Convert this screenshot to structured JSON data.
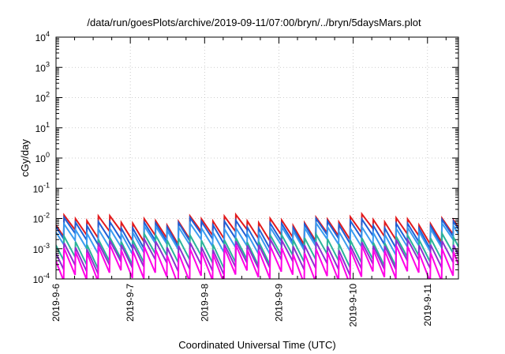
{
  "chart_data": {
    "type": "line",
    "title": "/data/run/goesPlots/archive/2019-09-11/07:00/bryn/../bryn/5daysMars.plot",
    "xlabel": "Coordinated Universal Time (UTC)",
    "ylabel": "cGy/day",
    "y_scale": "log",
    "ylim": [
      0.0001,
      10000
    ],
    "xlim": [
      "2019-09-06T00:00",
      "2019-09-11T10:00"
    ],
    "grid": true,
    "legend": "none",
    "y_ticks": [
      {
        "base": "10",
        "exp": "-4"
      },
      {
        "base": "10",
        "exp": "-3"
      },
      {
        "base": "10",
        "exp": "-2"
      },
      {
        "base": "10",
        "exp": "-1"
      },
      {
        "base": "10",
        "exp": "0"
      },
      {
        "base": "10",
        "exp": "1"
      },
      {
        "base": "10",
        "exp": "2"
      },
      {
        "base": "10",
        "exp": "3"
      },
      {
        "base": "10",
        "exp": "4"
      }
    ],
    "x_ticks": [
      "2019-9-6",
      "2019-9-7",
      "2019-9-8",
      "2019-9-9",
      "2019-9-10",
      "2019-9-11"
    ],
    "series": [
      {
        "color": "#e31a1c",
        "peak": 0.009,
        "trough": 0.0025
      },
      {
        "color": "#1f5fd6",
        "peak": 0.0068,
        "trough": 0.0017
      },
      {
        "color": "#3a9bf0",
        "peak": 0.0045,
        "trough": 0.0011
      },
      {
        "color": "#2bb39a",
        "peak": 0.0021,
        "trough": 0.0004
      },
      {
        "color": "#8f2fd0",
        "peak": 0.0014,
        "trough": 0.00025
      },
      {
        "color": "#ff00e6",
        "peak": 0.0009,
        "trough": 0.00011
      }
    ],
    "sawtooth_period_hours": 3.7
  }
}
